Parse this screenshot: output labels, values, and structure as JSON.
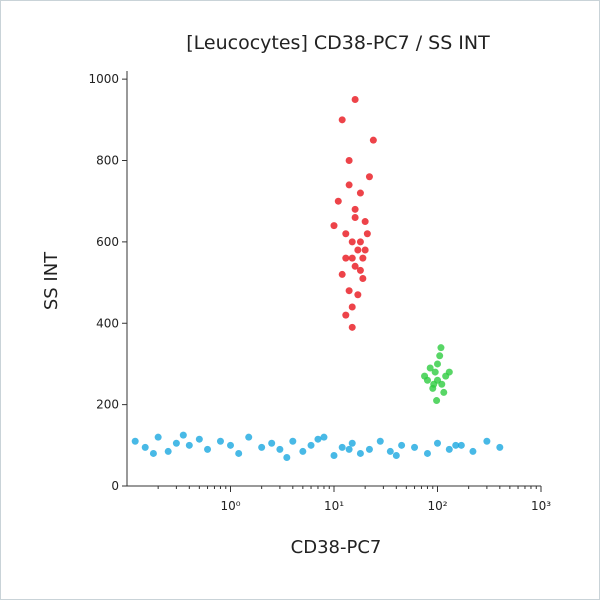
{
  "chart_data": {
    "type": "scatter",
    "title": "[Leucocytes] CD38-PC7 / SS INT",
    "x_label": "CD38-PC7",
    "y_label": "SS INT",
    "xscale": "log",
    "xlim": [
      0.1,
      1000
    ],
    "ylim": [
      0,
      1020
    ],
    "xticks": [
      {
        "value": 1,
        "label": "10⁰"
      },
      {
        "value": 10,
        "label": "10¹"
      },
      {
        "value": 100,
        "label": "10²"
      },
      {
        "value": 1000,
        "label": "10³"
      }
    ],
    "xminorticks": [
      0.2,
      0.3,
      0.4,
      0.5,
      0.6,
      0.7,
      0.8,
      0.9,
      2,
      3,
      4,
      5,
      6,
      7,
      8,
      9,
      20,
      30,
      40,
      50,
      60,
      70,
      80,
      90,
      200,
      300,
      400,
      500,
      600,
      700,
      800,
      900
    ],
    "yticks": [
      0,
      200,
      400,
      600,
      800,
      1000
    ],
    "series": [
      {
        "color": "#e8141c",
        "x": [
          12,
          15,
          18,
          14,
          20,
          16,
          11,
          13,
          17,
          22,
          15,
          19,
          14,
          16,
          12,
          18,
          21,
          15,
          13,
          17,
          24,
          10,
          16,
          14,
          19,
          15,
          18,
          13,
          16,
          20
        ],
        "values": [
          520,
          560,
          600,
          480,
          650,
          540,
          700,
          620,
          580,
          760,
          440,
          510,
          800,
          680,
          900,
          720,
          620,
          390,
          560,
          470,
          850,
          640,
          950,
          740,
          560,
          600,
          530,
          420,
          660,
          580
        ]
      },
      {
        "color": "#2ecc40",
        "x": [
          80,
          95,
          110,
          100,
          120,
          90,
          105,
          85,
          115,
          100,
          130,
          75,
          98,
          108,
          92
        ],
        "values": [
          260,
          280,
          250,
          300,
          270,
          240,
          320,
          290,
          230,
          260,
          280,
          270,
          210,
          340,
          250
        ]
      },
      {
        "color": "#1aa8e0",
        "x": [
          0.12,
          0.15,
          0.2,
          0.25,
          0.3,
          0.4,
          0.5,
          0.6,
          0.8,
          1,
          1.2,
          1.5,
          2,
          2.5,
          3,
          4,
          5,
          6,
          8,
          10,
          12,
          15,
          18,
          22,
          28,
          35,
          45,
          60,
          80,
          100,
          130,
          170,
          220,
          300,
          400,
          0.18,
          0.35,
          3.5,
          7,
          14,
          40,
          150
        ],
        "values": [
          110,
          95,
          120,
          85,
          105,
          100,
          115,
          90,
          110,
          100,
          80,
          120,
          95,
          105,
          90,
          110,
          85,
          100,
          120,
          75,
          95,
          105,
          80,
          90,
          110,
          85,
          100,
          95,
          80,
          105,
          90,
          100,
          85,
          110,
          95,
          80,
          125,
          70,
          115,
          90,
          75,
          100
        ]
      }
    ]
  }
}
